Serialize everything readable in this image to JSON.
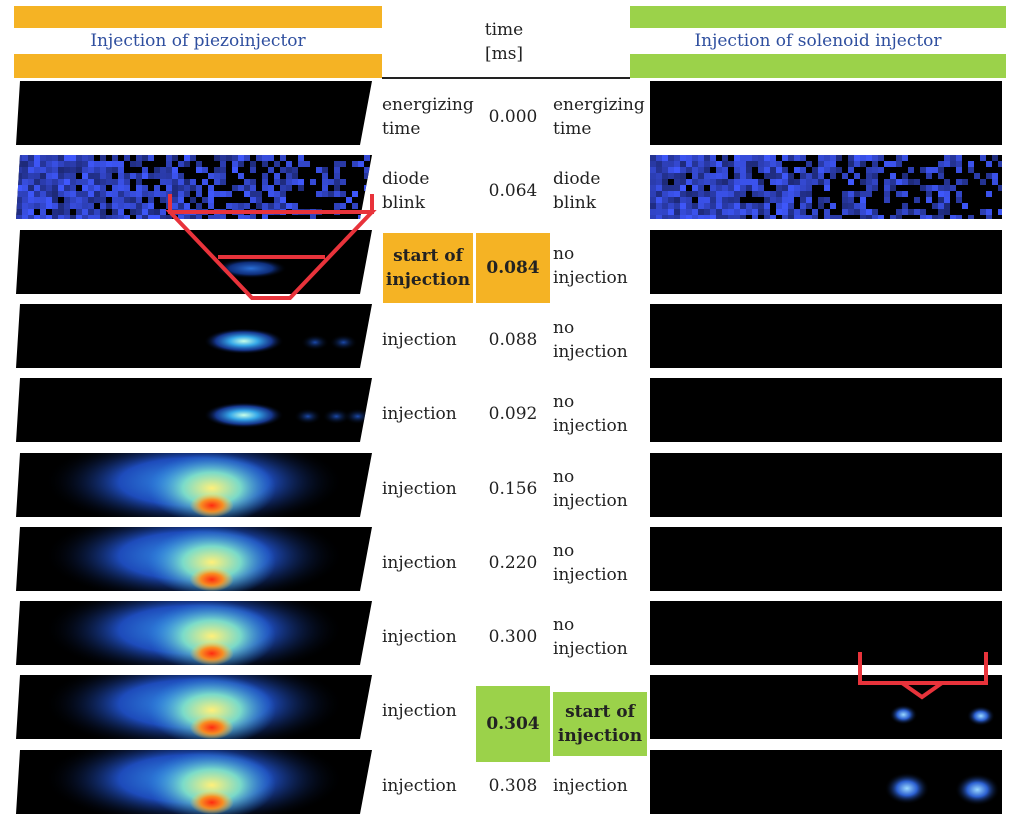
{
  "header": {
    "left_title": "Injection of piezoinjector",
    "right_title": "Injection of solenoid injector",
    "time_label_line1": "time",
    "time_label_line2": "[ms]"
  },
  "colors": {
    "piezo_accent": "#f5b324",
    "solenoid_accent": "#9bd24a",
    "title_text": "#2f4f9f",
    "marker": "#e8333b",
    "frame_bg": "#000000"
  },
  "rows": [
    {
      "time": "0.000",
      "left_label": [
        "energizing",
        "time"
      ],
      "right_label": [
        "energizing",
        "time"
      ],
      "piezo_frame": "dark",
      "solenoid_frame": "dark"
    },
    {
      "time": "0.064",
      "left_label": [
        "diode",
        "blink"
      ],
      "right_label": [
        "diode",
        "blink"
      ],
      "piezo_frame": "blue-noise",
      "solenoid_frame": "blue-noise"
    },
    {
      "time": "0.084",
      "left_label": [
        "start of",
        "injection"
      ],
      "right_label": [
        "no",
        "injection"
      ],
      "piezo_frame": "small-spot",
      "solenoid_frame": "dark",
      "highlight": "left"
    },
    {
      "time": "0.088",
      "left_label": [
        "injection"
      ],
      "right_label": [
        "no",
        "injection"
      ],
      "piezo_frame": "spot",
      "solenoid_frame": "dark"
    },
    {
      "time": "0.092",
      "left_label": [
        "injection"
      ],
      "right_label": [
        "no",
        "injection"
      ],
      "piezo_frame": "spot-tail",
      "solenoid_frame": "dark"
    },
    {
      "time": "0.156",
      "left_label": [
        "injection"
      ],
      "right_label": [
        "no",
        "injection"
      ],
      "piezo_frame": "plume",
      "solenoid_frame": "dark"
    },
    {
      "time": "0.220",
      "left_label": [
        "injection"
      ],
      "right_label": [
        "no",
        "injection"
      ],
      "piezo_frame": "plume",
      "solenoid_frame": "dark"
    },
    {
      "time": "0.300",
      "left_label": [
        "injection"
      ],
      "right_label": [
        "no",
        "injection"
      ],
      "piezo_frame": "plume",
      "solenoid_frame": "dark"
    },
    {
      "time": "0.304",
      "left_label": [
        "injection"
      ],
      "right_label": [
        "start of",
        "injection"
      ],
      "piezo_frame": "plume",
      "solenoid_frame": "small-spots",
      "highlight": "right"
    },
    {
      "time": "0.308",
      "left_label": [
        "injection"
      ],
      "right_label": [
        "injection"
      ],
      "piezo_frame": "plume",
      "solenoid_frame": "spots"
    }
  ]
}
